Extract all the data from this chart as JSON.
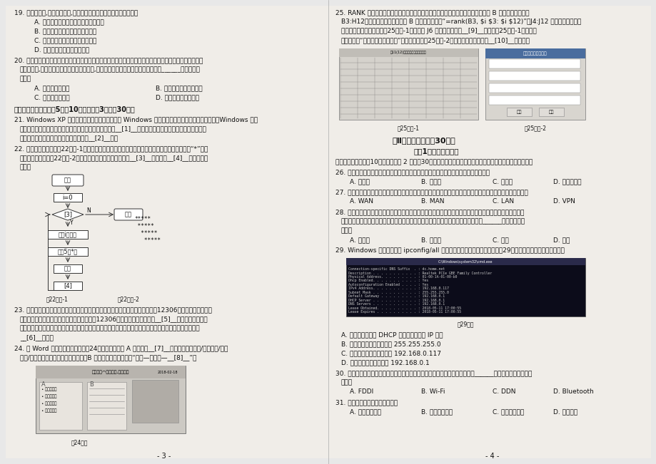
{
  "background_color": "#e8e8e8",
  "page_bg": "#f5f5f0",
  "left_page_num": "- 3 -",
  "right_page_num": "- 4 -",
  "q24_text2": "B 处文字框的插入方式为“插入－文本框－__[8]__”。"
}
